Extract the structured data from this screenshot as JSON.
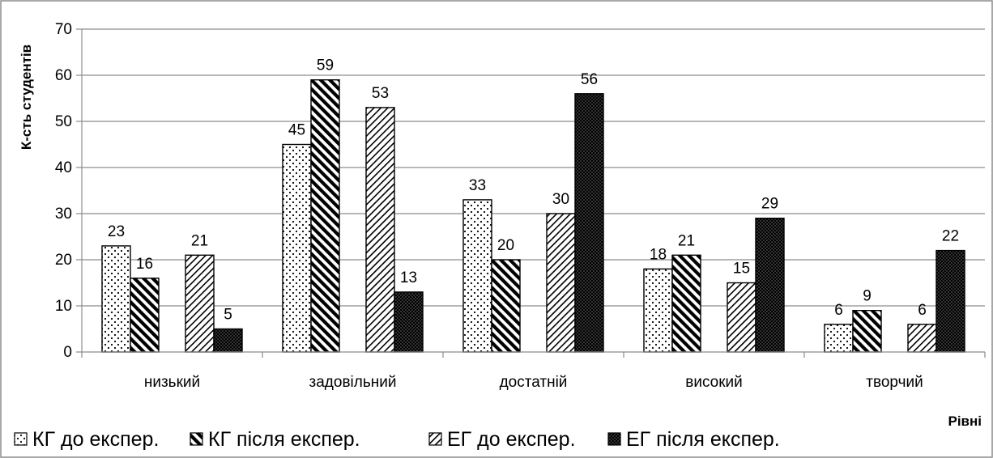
{
  "chart_data": {
    "type": "bar",
    "title": "",
    "xlabel": "Рівні",
    "ylabel": "К-сть студентів",
    "ylim": [
      0,
      70
    ],
    "yticks": [
      0,
      10,
      20,
      30,
      40,
      50,
      60,
      70
    ],
    "grid": true,
    "legend_position": "bottom",
    "categories": [
      "низький",
      "задовільний",
      "достатній",
      "високий",
      "творчий"
    ],
    "series": [
      {
        "name": "КГ до експер.",
        "values": [
          23,
          45,
          33,
          18,
          6
        ],
        "pattern": "dots",
        "color": "#ffffff"
      },
      {
        "name": "КГ після експер.",
        "values": [
          16,
          59,
          20,
          21,
          9
        ],
        "pattern": "wide-diagonal",
        "color": "#000000"
      },
      {
        "name": "ЕГ до експер.",
        "values": [
          21,
          53,
          30,
          15,
          6
        ],
        "pattern": "light-diagonal",
        "color": "#ffffff"
      },
      {
        "name": "ЕГ після експер.",
        "values": [
          5,
          13,
          56,
          29,
          22
        ],
        "pattern": "checker",
        "color": "#000000"
      }
    ]
  }
}
